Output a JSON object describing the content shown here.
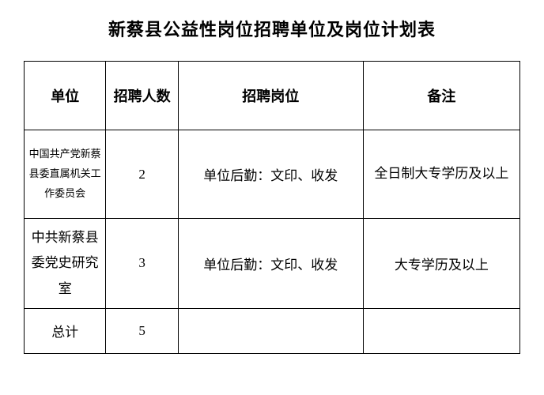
{
  "title": "新蔡县公益性岗位招聘单位及岗位计划表",
  "table": {
    "columns": [
      "单位",
      "招聘人数",
      "招聘岗位",
      "备注"
    ],
    "column_widths": [
      "16%",
      "14%",
      "38%",
      "32%"
    ],
    "rows": [
      {
        "unit": "中国共产党新蔡县委直属机关工作委员会",
        "unit_small": true,
        "count": "2",
        "position": "单位后勤：文印、收发",
        "remark": "全日制大专学历及以上"
      },
      {
        "unit": "中共新蔡县委党史研究室",
        "unit_small": false,
        "count": "3",
        "position": "单位后勤：文印、收发",
        "remark": "大专学历及以上"
      }
    ],
    "total": {
      "label": "总计",
      "count": "5"
    }
  },
  "styling": {
    "background_color": "#ffffff",
    "border_color": "#000000",
    "text_color": "#000000",
    "title_fontsize": 22,
    "header_fontsize": 18,
    "cell_fontsize": 17,
    "small_cell_fontsize": 13
  }
}
